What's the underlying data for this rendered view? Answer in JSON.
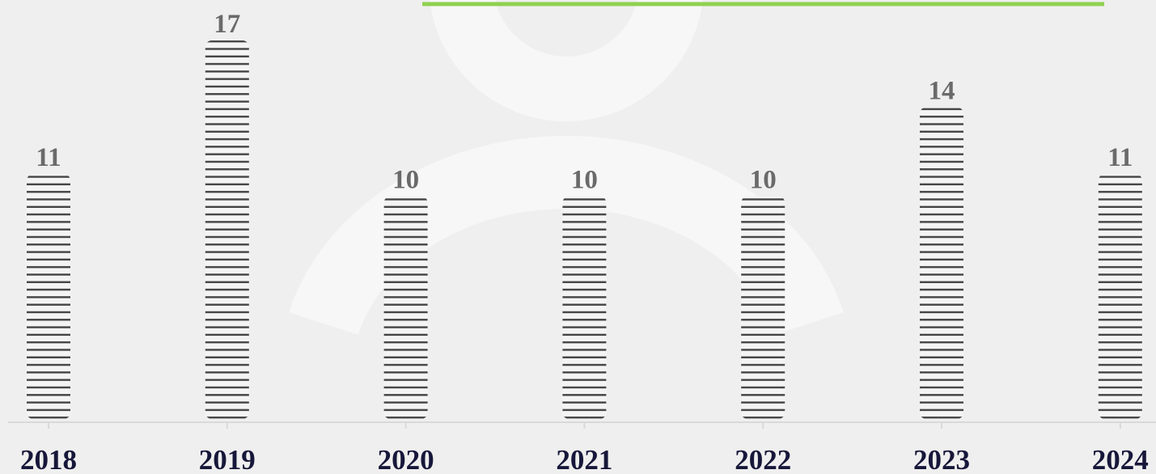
{
  "chart_data": {
    "type": "bar",
    "categories": [
      "2018",
      "2019",
      "2020",
      "2021",
      "2022",
      "2023",
      "2024"
    ],
    "values": [
      11,
      17,
      10,
      10,
      10,
      14,
      11
    ],
    "color": "#444444"
  }
}
